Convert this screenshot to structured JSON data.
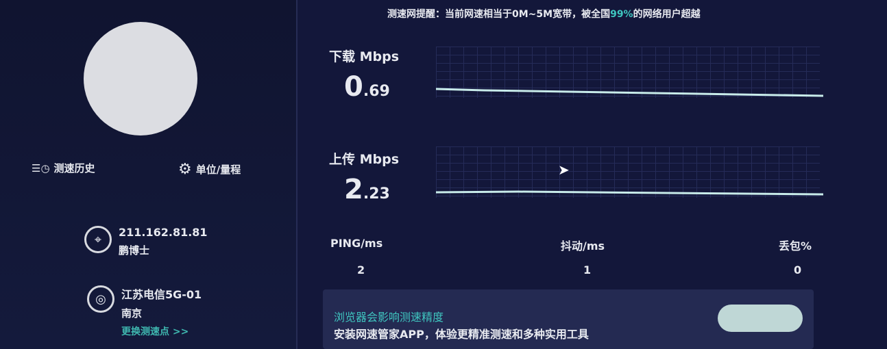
{
  "sidebar": {
    "history_label": "测速历史",
    "settings_label": "单位/量程",
    "ip": "211.162.81.81",
    "isp": "鹏博士",
    "server": "江苏电信5G-01",
    "city": "南京",
    "change_server": "更换测速点 >>"
  },
  "notice": {
    "prefix": "测速网提醒：当前网速相当于0M~5M宽带，被全国",
    "percent": "99%",
    "suffix": "的网络用户超越"
  },
  "download": {
    "label": "下载 Mbps",
    "int": "0",
    "dec": ".69"
  },
  "upload": {
    "label": "上传 Mbps",
    "int": "2",
    "dec": ".23"
  },
  "stats": {
    "ping_label": "PING/ms",
    "ping": "2",
    "jitter_label": "抖动/ms",
    "jitter": "1",
    "loss_label": "丢包%",
    "loss": "0"
  },
  "banner": {
    "line1": "浏览器会影响测速精度",
    "line2": "安装网速管家APP，体验更精准测速和多种实用工具"
  },
  "colors": {
    "accent": "#3fc6c0",
    "background": "#13173a"
  }
}
